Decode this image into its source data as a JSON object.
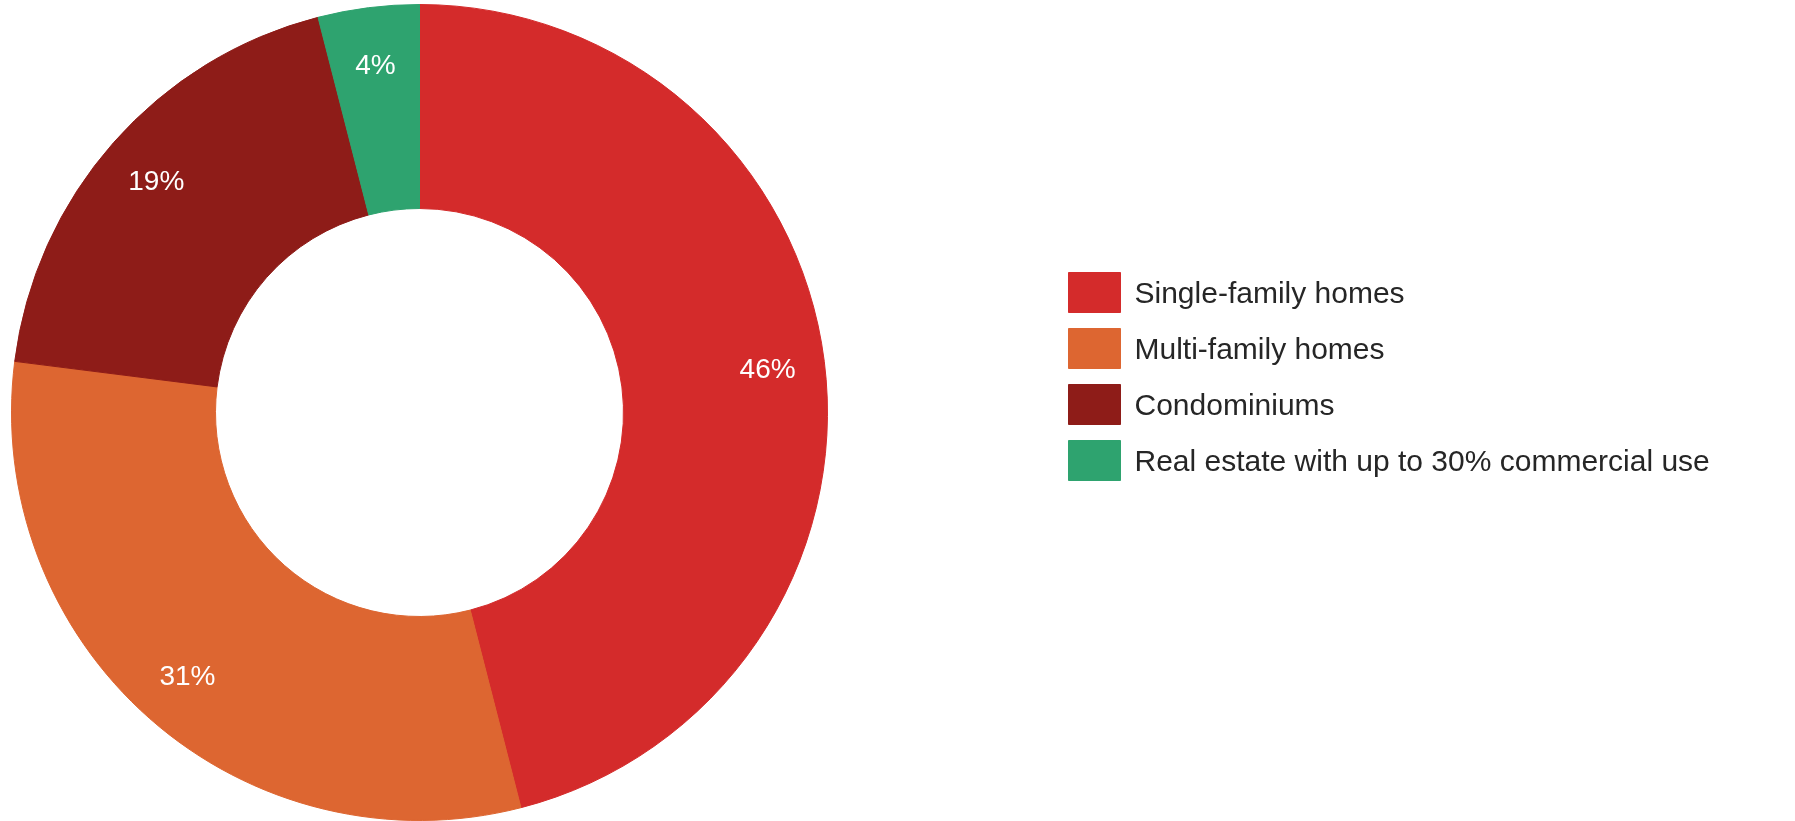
{
  "chart_data": {
    "type": "donut",
    "categories": [
      "Single-family homes",
      "Multi-family homes",
      "Condominiums",
      "Real estate with up to 30% commercial use"
    ],
    "values": [
      46,
      31,
      19,
      4
    ],
    "colors": [
      "#d42b2b",
      "#dd6631",
      "#8e1c18",
      "#2ea36f"
    ],
    "value_labels": [
      "46%",
      "31%",
      "19%",
      "4%"
    ],
    "legend": "right"
  }
}
